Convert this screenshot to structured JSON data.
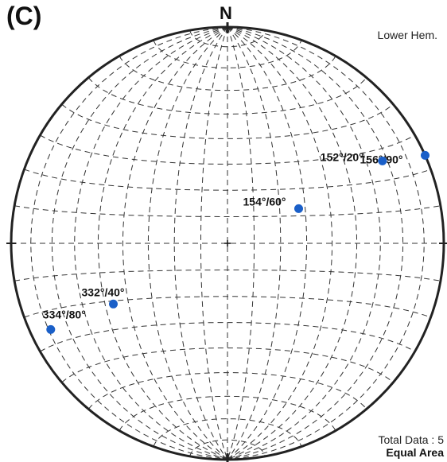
{
  "panel_label": "(C)",
  "north_label": "N",
  "hemisphere_label": "Lower Hem.",
  "total_label": "Total Data : 5",
  "projection_label": "Equal Area",
  "point_color": "#1a5fc8",
  "net_color": "#333333",
  "measurements": [
    {
      "label": "156°/90°",
      "trend": 66,
      "plunge": 0
    },
    {
      "label": "152°/20°",
      "trend": 62,
      "plunge": 20
    },
    {
      "label": "154°/60°",
      "trend": 64,
      "plunge": 60
    },
    {
      "label": "332°/40°",
      "trend": 242,
      "plunge": 40
    },
    {
      "label": "334°/80°",
      "trend": 244,
      "plunge": 10
    }
  ]
}
